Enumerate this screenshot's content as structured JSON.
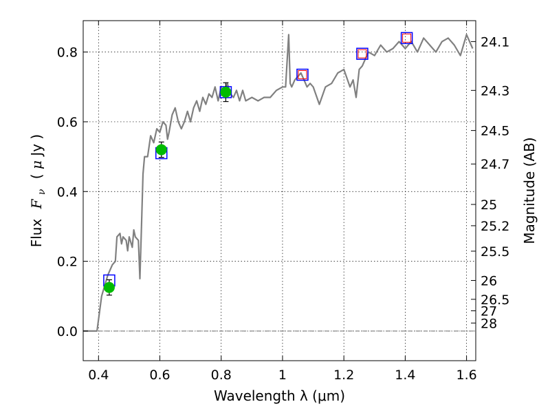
{
  "chart_data": {
    "type": "scatter",
    "xlabel": "Wavelength  λ (μm)",
    "ylabel_parts": {
      "flux_word": "Flux",
      "symbol": "F",
      "subscript": "ν",
      "unit_open": "( ",
      "unit_mu": "μ",
      "unit_rest": "Jy )"
    },
    "right_ylabel": "Magnitude (AB)",
    "xlim": [
      0.35,
      1.63
    ],
    "ylim": [
      -0.085,
      0.89
    ],
    "grid": true,
    "x_ticks": [
      0.4,
      0.6,
      0.8,
      1.0,
      1.2,
      1.4,
      1.6
    ],
    "x_tick_labels": [
      "0.4",
      "0.6",
      "0.8",
      "1",
      "1.2",
      "1.4",
      "1.6"
    ],
    "y_ticks": [
      0.0,
      0.2,
      0.4,
      0.6,
      0.8
    ],
    "y_tick_labels": [
      "0.0",
      "0.2",
      "0.4",
      "0.6",
      "0.8"
    ],
    "right_ticks": [
      {
        "label": "24.1",
        "flux": 0.83
      },
      {
        "label": "24.3",
        "flux": 0.69
      },
      {
        "label": "24.5",
        "flux": 0.575
      },
      {
        "label": "24.7",
        "flux": 0.479
      },
      {
        "label": "25",
        "flux": 0.363
      },
      {
        "label": "25.2",
        "flux": 0.302
      },
      {
        "label": "25.5",
        "flux": 0.229
      },
      {
        "label": "26",
        "flux": 0.145
      },
      {
        "label": "26.5",
        "flux": 0.091
      },
      {
        "label": "27",
        "flux": 0.058
      },
      {
        "label": "28",
        "flux": 0.023
      }
    ],
    "series": [
      {
        "role": "model spectrum",
        "color": "#808080",
        "x": [
          0.35,
          0.395,
          0.41,
          0.43,
          0.445,
          0.455,
          0.46,
          0.47,
          0.475,
          0.48,
          0.49,
          0.495,
          0.5,
          0.51,
          0.515,
          0.52,
          0.53,
          0.535,
          0.54,
          0.545,
          0.55,
          0.56,
          0.57,
          0.58,
          0.59,
          0.6,
          0.61,
          0.62,
          0.625,
          0.63,
          0.64,
          0.65,
          0.66,
          0.67,
          0.68,
          0.69,
          0.7,
          0.71,
          0.72,
          0.73,
          0.74,
          0.75,
          0.76,
          0.77,
          0.78,
          0.79,
          0.8,
          0.81,
          0.82,
          0.83,
          0.84,
          0.85,
          0.86,
          0.87,
          0.88,
          0.9,
          0.92,
          0.94,
          0.96,
          0.98,
          1.0,
          1.01,
          1.02,
          1.025,
          1.03,
          1.04,
          1.05,
          1.06,
          1.07,
          1.08,
          1.09,
          1.1,
          1.12,
          1.14,
          1.16,
          1.18,
          1.2,
          1.22,
          1.23,
          1.24,
          1.25,
          1.26,
          1.27,
          1.28,
          1.3,
          1.32,
          1.34,
          1.36,
          1.38,
          1.4,
          1.42,
          1.44,
          1.46,
          1.48,
          1.5,
          1.52,
          1.54,
          1.56,
          1.58,
          1.6,
          1.62
        ],
        "y": [
          0.0,
          0.0,
          0.1,
          0.16,
          0.19,
          0.2,
          0.27,
          0.28,
          0.25,
          0.27,
          0.26,
          0.23,
          0.27,
          0.24,
          0.29,
          0.27,
          0.26,
          0.15,
          0.3,
          0.45,
          0.5,
          0.5,
          0.56,
          0.54,
          0.58,
          0.57,
          0.6,
          0.59,
          0.55,
          0.57,
          0.62,
          0.64,
          0.6,
          0.58,
          0.6,
          0.63,
          0.6,
          0.64,
          0.66,
          0.63,
          0.67,
          0.65,
          0.68,
          0.67,
          0.7,
          0.66,
          0.7,
          0.68,
          0.71,
          0.68,
          0.67,
          0.69,
          0.66,
          0.69,
          0.66,
          0.67,
          0.66,
          0.67,
          0.67,
          0.69,
          0.7,
          0.7,
          0.85,
          0.71,
          0.7,
          0.72,
          0.73,
          0.74,
          0.72,
          0.7,
          0.71,
          0.7,
          0.65,
          0.7,
          0.71,
          0.74,
          0.75,
          0.7,
          0.72,
          0.67,
          0.75,
          0.76,
          0.78,
          0.8,
          0.79,
          0.82,
          0.8,
          0.81,
          0.83,
          0.81,
          0.83,
          0.8,
          0.84,
          0.82,
          0.8,
          0.83,
          0.84,
          0.82,
          0.79,
          0.85,
          0.81
        ]
      },
      {
        "role": "model photometry",
        "marker": "open-square",
        "edge_color": "#0000ff",
        "x": [
          0.435,
          0.605,
          0.815,
          1.065,
          1.26,
          1.405
        ],
        "y": [
          0.145,
          0.51,
          0.685,
          0.735,
          0.795,
          0.84
        ]
      },
      {
        "role": "upper limits",
        "marker": "open-square",
        "edge_color": "#ff0000",
        "x": [
          1.065,
          1.26,
          1.405
        ],
        "y": [
          0.735,
          0.795,
          0.84
        ]
      },
      {
        "role": "observed",
        "marker": "circle",
        "color": "#00bb00",
        "x": [
          0.435,
          0.605,
          0.815
        ],
        "y": [
          0.125,
          0.52,
          0.685
        ],
        "yerr": [
          0.022,
          0.022,
          0.027
        ]
      }
    ]
  }
}
